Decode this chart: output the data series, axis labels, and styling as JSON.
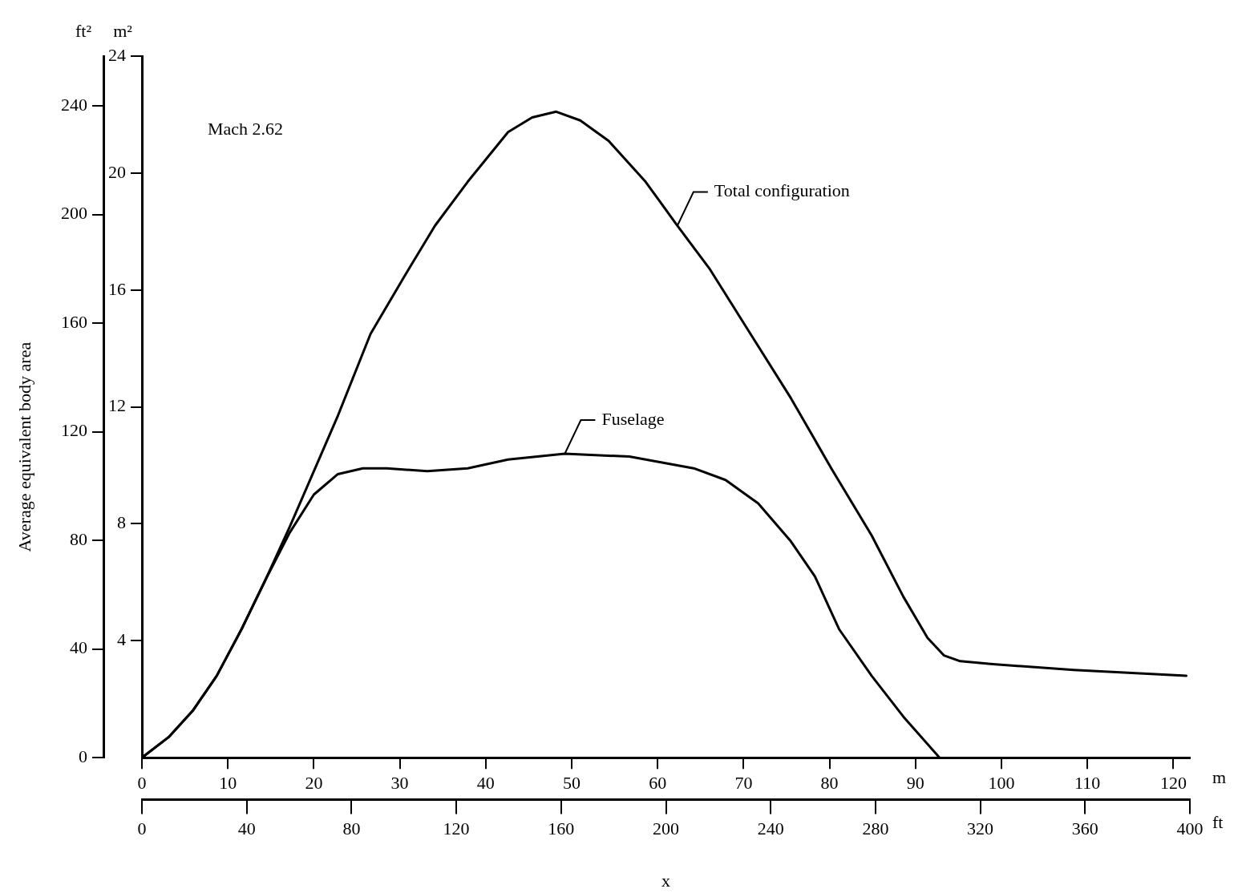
{
  "chart_data": {
    "type": "line",
    "ylabel": "m²",
    "y2label": "ft²",
    "xlabel": "m",
    "x2label": "ft",
    "annotations": [
      "Mach 2.62",
      "Average equivalent body area",
      "x"
    ],
    "xlim": [
      0,
      121.92
    ],
    "xticks": [
      0,
      10,
      20,
      30,
      40,
      50,
      60,
      70,
      80,
      90,
      100,
      110,
      120
    ],
    "x2lim": [
      0,
      400
    ],
    "x2ticks": [
      0,
      40,
      80,
      120,
      160,
      200,
      240,
      280,
      320,
      360,
      400
    ],
    "ylim": [
      0,
      24
    ],
    "yticks": [
      4,
      8,
      12,
      16,
      20,
      24
    ],
    "y2lim": [
      0,
      258.33
    ],
    "y2ticks": [
      0,
      40,
      80,
      120,
      160,
      200,
      240
    ],
    "grid": false,
    "legend": false,
    "series": [
      {
        "name": "Total configuration",
        "color": "#000000",
        "x": [
          0,
          3.1,
          5.9,
          8.7,
          11.6,
          14.4,
          17.2,
          20,
          22.8,
          26.6,
          30.4,
          34.1,
          37.9,
          42.6,
          45.4,
          48.2,
          51,
          54.3,
          58.6,
          62.3,
          66.1,
          70.8,
          75.5,
          80.2,
          84.9,
          88.6,
          91.4,
          93.3,
          95.2,
          99,
          108.4,
          121.5
        ],
        "values": [
          0,
          0.7,
          1.6,
          2.8,
          4.4,
          6.1,
          7.9,
          9.8,
          11.7,
          14.5,
          16.4,
          18.2,
          19.7,
          21.4,
          21.9,
          22.1,
          21.8,
          21.1,
          19.7,
          18.2,
          16.7,
          14.5,
          12.3,
          9.9,
          7.6,
          5.5,
          4.1,
          3.5,
          3.3,
          3.2,
          3.0,
          2.8
        ]
      },
      {
        "name": "Fuselage",
        "color": "#000000",
        "x": [
          0,
          3.1,
          5.9,
          8.7,
          11.6,
          14.4,
          17.2,
          20,
          22.8,
          25.7,
          28.5,
          33.2,
          37.9,
          42.6,
          49.2,
          56.7,
          64.2,
          67.9,
          71.7,
          75.5,
          78.3,
          81.1,
          84.9,
          88.6,
          92.8
        ],
        "values": [
          0,
          0.7,
          1.6,
          2.8,
          4.4,
          6.1,
          7.7,
          9.0,
          9.7,
          9.9,
          9.9,
          9.8,
          9.9,
          10.2,
          10.4,
          10.3,
          9.9,
          9.5,
          8.7,
          7.4,
          6.2,
          4.4,
          2.8,
          1.4,
          0
        ]
      }
    ]
  }
}
